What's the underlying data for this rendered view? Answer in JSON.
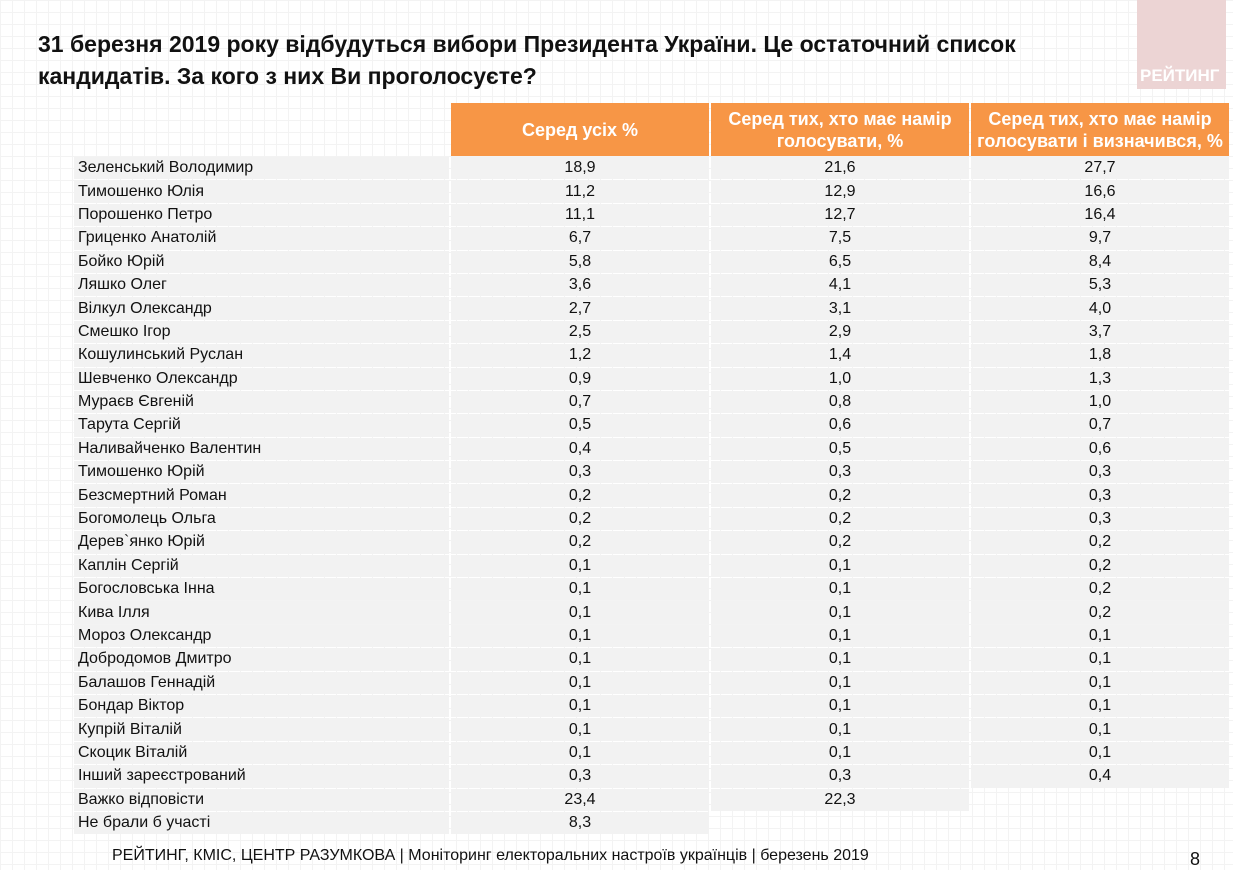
{
  "title": "31 березня 2019 року відбудуться вибори Президента України. Це остаточний список кандидатів. За кого з них Ви проголосуєте?",
  "logo_text": "РЕЙТИНГ",
  "accent_color": "#f79646",
  "columns": [
    "Серед усіх %",
    "Серед тих, хто має намір голосувати, %",
    "Серед тих, хто має намір голосувати і визначився, %"
  ],
  "rows": [
    [
      "Зеленський Володимир",
      "18,9",
      "21,6",
      "27,7"
    ],
    [
      "Тимошенко Юлія",
      "11,2",
      "12,9",
      "16,6"
    ],
    [
      "Порошенко Петро",
      "11,1",
      "12,7",
      "16,4"
    ],
    [
      "Гриценко Анатолій",
      "6,7",
      "7,5",
      "9,7"
    ],
    [
      "Бойко Юрій",
      "5,8",
      "6,5",
      "8,4"
    ],
    [
      "Ляшко Олег",
      "3,6",
      "4,1",
      "5,3"
    ],
    [
      "Вілкул Олександр",
      "2,7",
      "3,1",
      "4,0"
    ],
    [
      "Смешко Ігор",
      "2,5",
      "2,9",
      "3,7"
    ],
    [
      "Кошулинський Руслан",
      "1,2",
      "1,4",
      "1,8"
    ],
    [
      "Шевченко Олександр",
      "0,9",
      "1,0",
      "1,3"
    ],
    [
      "Мураєв Євгеній",
      "0,7",
      "0,8",
      "1,0"
    ],
    [
      "Тарута Сергій",
      "0,5",
      "0,6",
      "0,7"
    ],
    [
      "Наливайченко Валентин",
      "0,4",
      "0,5",
      "0,6"
    ],
    [
      "Тимошенко Юрій",
      "0,3",
      "0,3",
      "0,3"
    ],
    [
      "Безсмертний Роман",
      "0,2",
      "0,2",
      "0,3"
    ],
    [
      "Богомолець Ольга",
      "0,2",
      "0,2",
      "0,3"
    ],
    [
      "Дерев`янко Юрій",
      "0,2",
      "0,2",
      "0,2"
    ],
    [
      "Каплін Сергій",
      "0,1",
      "0,1",
      "0,2"
    ],
    [
      "Богословська Інна",
      "0,1",
      "0,1",
      "0,2"
    ],
    [
      "Кива Ілля",
      "0,1",
      "0,1",
      "0,2"
    ],
    [
      "Мороз Олександр",
      "0,1",
      "0,1",
      "0,1"
    ],
    [
      "Добродомов Дмитро",
      "0,1",
      "0,1",
      "0,1"
    ],
    [
      "Балашов Геннадій",
      "0,1",
      "0,1",
      "0,1"
    ],
    [
      "Бондар Віктор",
      "0,1",
      "0,1",
      "0,1"
    ],
    [
      "Купрій Віталій",
      "0,1",
      "0,1",
      "0,1"
    ],
    [
      "Скоцик Віталій",
      "0,1",
      "0,1",
      "0,1"
    ],
    [
      "Інший зареєстрований",
      "0,3",
      "0,3",
      "0,4"
    ],
    [
      "Важко відповісти",
      "23,4",
      "22,3",
      null
    ],
    [
      "Не брали б участі",
      "8,3",
      null,
      null
    ]
  ],
  "footer": "РЕЙТИНГ, КМІС, ЦЕНТР РАЗУМКОВА  | Моніторинг електоральних настроїв українців | березень 2019",
  "page_number": "8"
}
